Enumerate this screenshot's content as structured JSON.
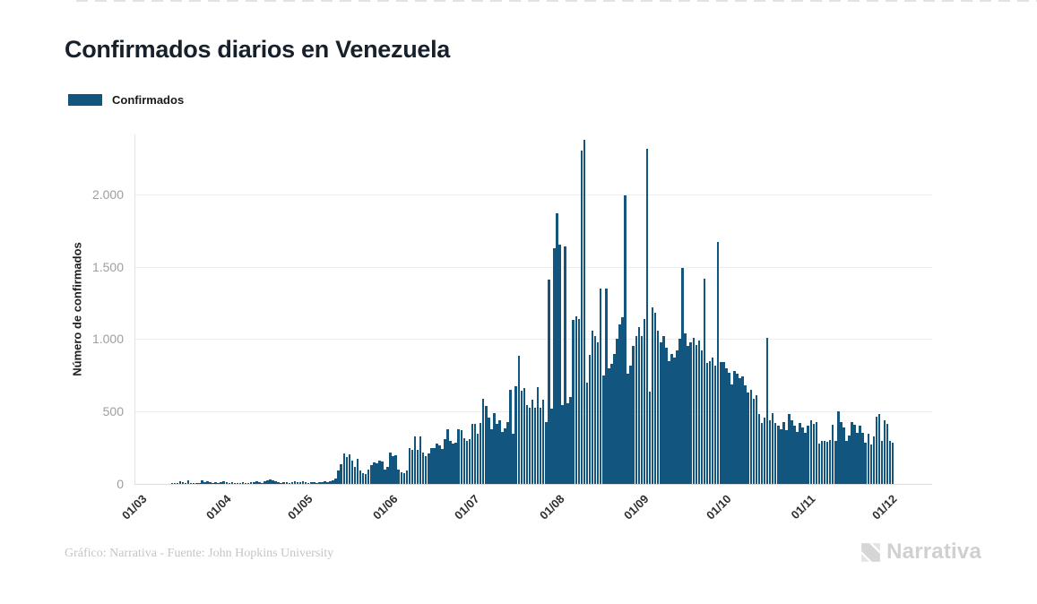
{
  "header": {
    "title": "Confirmados diarios en Venezuela"
  },
  "legend": {
    "items": [
      {
        "label": "Confirmados",
        "color": "#12567f"
      }
    ]
  },
  "footer": {
    "credit": "Gráfico: Narrativa - Fuente: John Hopkins University",
    "brand": "Narrativa"
  },
  "chart_data": {
    "type": "bar",
    "title": "Confirmados diarios en Venezuela",
    "xlabel": "",
    "ylabel": "Número de confirmados",
    "frequency": "daily",
    "grid": "horizontal",
    "legend_position": "top-left",
    "bar_color": "#12567f",
    "y_ticks": [
      0,
      500,
      1000,
      1500,
      2000
    ],
    "y_tick_labels": [
      "0",
      "500",
      "1.000",
      "1.500",
      "2.000"
    ],
    "ylim": [
      0,
      2400
    ],
    "x_tick_labels": [
      "01/03",
      "01/04",
      "01/05",
      "01/06",
      "01/07",
      "01/08",
      "01/09",
      "01/10",
      "01/11",
      "01/12"
    ],
    "x_tick_indices": [
      0,
      31,
      61,
      92,
      122,
      153,
      184,
      214,
      245,
      275
    ],
    "series": [
      {
        "name": "Confirmados",
        "color": "#12567f",
        "values": [
          0,
          0,
          0,
          0,
          0,
          0,
          0,
          0,
          0,
          0,
          0,
          0,
          2,
          8,
          6,
          16,
          10,
          6,
          26,
          6,
          5,
          9,
          7,
          22,
          14,
          16,
          11,
          4,
          12,
          6,
          14,
          17,
          10,
          8,
          12,
          5,
          4,
          9,
          13,
          6,
          4,
          10,
          14,
          18,
          12,
          9,
          20,
          26,
          30,
          24,
          16,
          12,
          9,
          14,
          10,
          7,
          12,
          16,
          10,
          14,
          18,
          12,
          9,
          15,
          11,
          8,
          14,
          10,
          16,
          13,
          18,
          25,
          40,
          95,
          135,
          210,
          185,
          205,
          160,
          120,
          173,
          95,
          74,
          66,
          98,
          130,
          150,
          143,
          160,
          155,
          100,
          120,
          215,
          195,
          200,
          100,
          80,
          74,
          90,
          245,
          235,
          330,
          235,
          327,
          214,
          194,
          210,
          245,
          250,
          276,
          266,
          240,
          307,
          379,
          297,
          280,
          286,
          379,
          369,
          317,
          297,
          310,
          415,
          414,
          348,
          420,
          585,
          540,
          461,
          380,
          492,
          414,
          441,
          360,
          383,
          430,
          650,
          348,
          672,
          883,
          646,
          660,
          543,
          523,
          580,
          525,
          667,
          525,
          580,
          430,
          1410,
          520,
          1630,
          1867,
          1650,
          545,
          1640,
          560,
          600,
          1130,
          1160,
          1140,
          2302,
          2378,
          700,
          890,
          1060,
          1020,
          980,
          1350,
          750,
          1350,
          800,
          830,
          900,
          1000,
          1100,
          1150,
          1990,
          760,
          820,
          950,
          1020,
          1080,
          1020,
          1140,
          2317,
          640,
          1220,
          1180,
          1060,
          980,
          1020,
          940,
          850,
          900,
          870,
          920,
          1000,
          1490,
          1040,
          950,
          980,
          1010,
          960,
          990,
          920,
          1420,
          835,
          850,
          870,
          820,
          1670,
          840,
          840,
          800,
          770,
          685,
          780,
          760,
          730,
          740,
          680,
          630,
          650,
          590,
          610,
          480,
          420,
          460,
          1007,
          440,
          490,
          420,
          400,
          380,
          430,
          370,
          480,
          440,
          400,
          360,
          420,
          390,
          350,
          400,
          440,
          415,
          430,
          278,
          295,
          300,
          290,
          305,
          408,
          295,
          500,
          425,
          390,
          295,
          335,
          425,
          408,
          355,
          400,
          355,
          285,
          345,
          270,
          330,
          463,
          480,
          295,
          440,
          415,
          295,
          285
        ]
      }
    ]
  }
}
